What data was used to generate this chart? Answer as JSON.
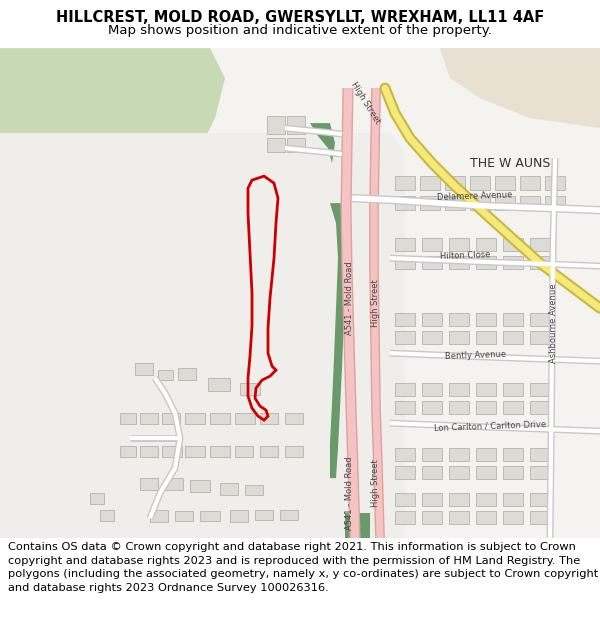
{
  "title": "HILLCREST, MOLD ROAD, GWERSYLLT, WREXHAM, LL11 4AF",
  "subtitle": "Map shows position and indicative extent of the property.",
  "footer": "Contains OS data © Crown copyright and database right 2021. This information is subject to Crown copyright and database rights 2023 and is reproduced with the permission of HM Land Registry. The polygons (including the associated geometry, namely x, y co-ordinates) are subject to Crown copyright and database rights 2023 Ordnance Survey 100026316.",
  "bg_white": "#f5f3f0",
  "bg_light_gray": "#ebebeb",
  "green_field": "#c8d9b5",
  "dark_green": "#6a9a6a",
  "road_pink": "#f4c4c4",
  "road_pink_border": "#e0a0a0",
  "road_white": "#ffffff",
  "road_gray_border": "#cccccc",
  "road_yellow": "#f5e97a",
  "road_yellow_border": "#c8b840",
  "building_fill": "#dcdbd5",
  "building_edge": "#aaa9a3",
  "tan_area": "#e8e0d0",
  "red_poly": "#cc0000",
  "title_fontsize": 10.5,
  "subtitle_fontsize": 9.5,
  "footer_fontsize": 8.2
}
